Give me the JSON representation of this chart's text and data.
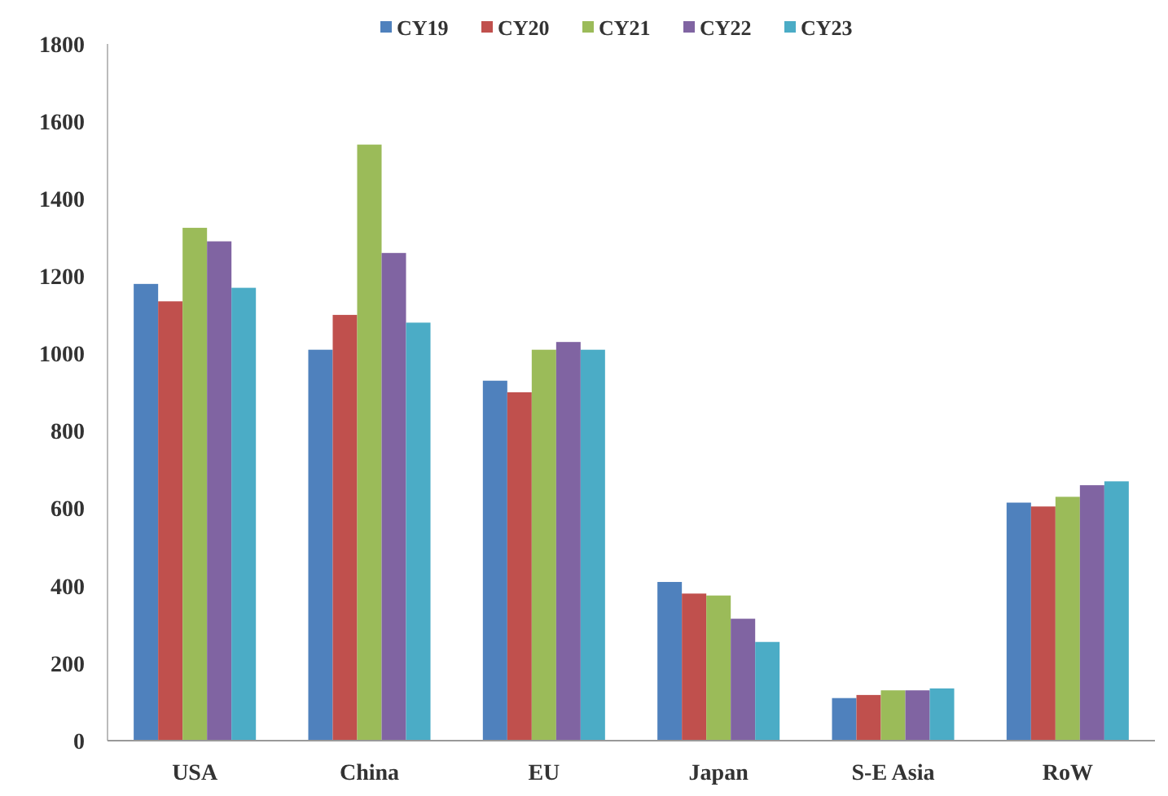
{
  "chart_data": {
    "type": "bar",
    "categories": [
      "USA",
      "China",
      "EU",
      "Japan",
      "S-E Asia",
      "RoW"
    ],
    "series": [
      {
        "name": "CY19",
        "color": "#4f81bd",
        "values": [
          1180,
          1010,
          930,
          410,
          110,
          615
        ]
      },
      {
        "name": "CY20",
        "color": "#c0504d",
        "values": [
          1135,
          1100,
          900,
          380,
          118,
          605
        ]
      },
      {
        "name": "CY21",
        "color": "#9bbb59",
        "values": [
          1325,
          1540,
          1010,
          375,
          130,
          630
        ]
      },
      {
        "name": "CY22",
        "color": "#8064a2",
        "values": [
          1290,
          1260,
          1030,
          315,
          130,
          660
        ]
      },
      {
        "name": "CY23",
        "color": "#4bacc6",
        "values": [
          1170,
          1080,
          1010,
          255,
          135,
          670
        ]
      }
    ],
    "ylim": [
      0,
      1800
    ],
    "yticks": [
      0,
      200,
      400,
      600,
      800,
      1000,
      1200,
      1400,
      1600,
      1800
    ],
    "grid": false,
    "legend": "top"
  }
}
